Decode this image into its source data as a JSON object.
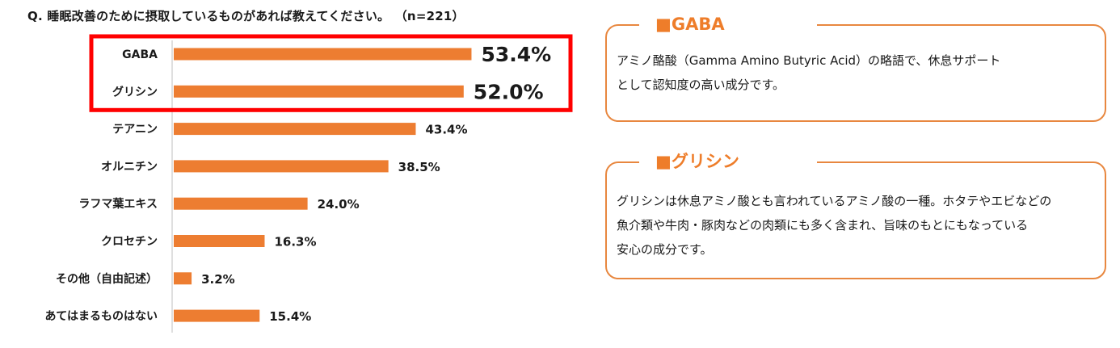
{
  "title": {
    "question": "Q. 睡眠改善のために摂取しているものがあれば教えてください。",
    "n": "（n=221）"
  },
  "chart_data": {
    "type": "bar",
    "orientation": "horizontal",
    "categories": [
      "GABA",
      "グリシン",
      "テアニン",
      "オルニチン",
      "ラフマ葉エキス",
      "クロセチン",
      "その他（自由記述）",
      "あてはまるものはない"
    ],
    "values": [
      53.4,
      52.0,
      43.4,
      38.5,
      24.0,
      16.3,
      3.2,
      15.4
    ],
    "value_labels": [
      "53.4%",
      "52.0%",
      "43.4%",
      "38.5%",
      "24.0%",
      "16.3%",
      "3.2%",
      "15.4%"
    ],
    "unit": "%",
    "highlighted": [
      "GABA",
      "グリシン"
    ],
    "bar_color": "#ed7d31",
    "highlight_color": "#ff0000"
  },
  "boxes": [
    {
      "heading": "■GABA",
      "lines": [
        "アミノ酪酸（Gamma Amino Butyric Acid）の略語で、休息サポート",
        "として認知度の高い成分です。"
      ]
    },
    {
      "heading": "■グリシン",
      "lines": [
        "グリシンは休息アミノ酸とも言われているアミノ酸の一種。ホタテやエビなどの",
        "魚介類や牛肉・豚肉などの肉類にも多く含まれ、旨味のもとにもなっている",
        "安心の成分です。"
      ]
    }
  ],
  "colors": {
    "accent": "#ee7d2a",
    "border": "#e8873f",
    "bar": "#ed7d31",
    "highlight": "#ff0000"
  }
}
